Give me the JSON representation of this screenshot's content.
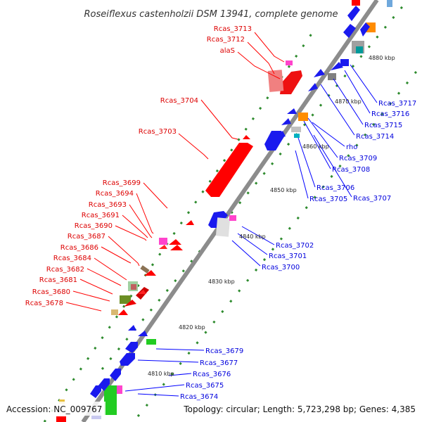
{
  "title": "Roseiflexus castenholzii DSM 13941, complete genome",
  "footer": {
    "accession": "Accession: NC_009767",
    "summary": "Topology: circular; Length: 5,723,298 bp; Genes: 4,385"
  },
  "colors": {
    "forward": "#ff0000",
    "reverse": "#0000ff",
    "backbone": "#8c8c8c",
    "tick": "#2e8b2e"
  },
  "scale_labels": [
    "4880 kbp",
    "4870 kbp",
    "4860 kbp",
    "4850 kbp",
    "4840 kbp",
    "4830 kbp",
    "4820 kbp",
    "4810 kbp"
  ],
  "left_labels": [
    "Rcas_3713",
    "Rcas_3712",
    "alaS",
    "Rcas_3704",
    "Rcas_3703",
    "Rcas_3699",
    "Rcas_3694",
    "Rcas_3693",
    "Rcas_3691",
    "Rcas_3690",
    "Rcas_3687",
    "Rcas_3686",
    "Rcas_3684",
    "Rcas_3682",
    "Rcas_3681",
    "Rcas_3680",
    "Rcas_3678"
  ],
  "right_labels": [
    "Rcas_3717",
    "Rcas_3716",
    "Rcas_3715",
    "Rcas_3714",
    "rho",
    "Rcas_3709",
    "Rcas_3708",
    "Rcas_3706",
    "Rcas_3707",
    "Rcas_3705",
    "Rcas_3702",
    "Rcas_3701",
    "Rcas_3700",
    "Rcas_3679",
    "Rcas_3677",
    "Rcas_3676",
    "Rcas_3675",
    "Rcas_3674"
  ]
}
